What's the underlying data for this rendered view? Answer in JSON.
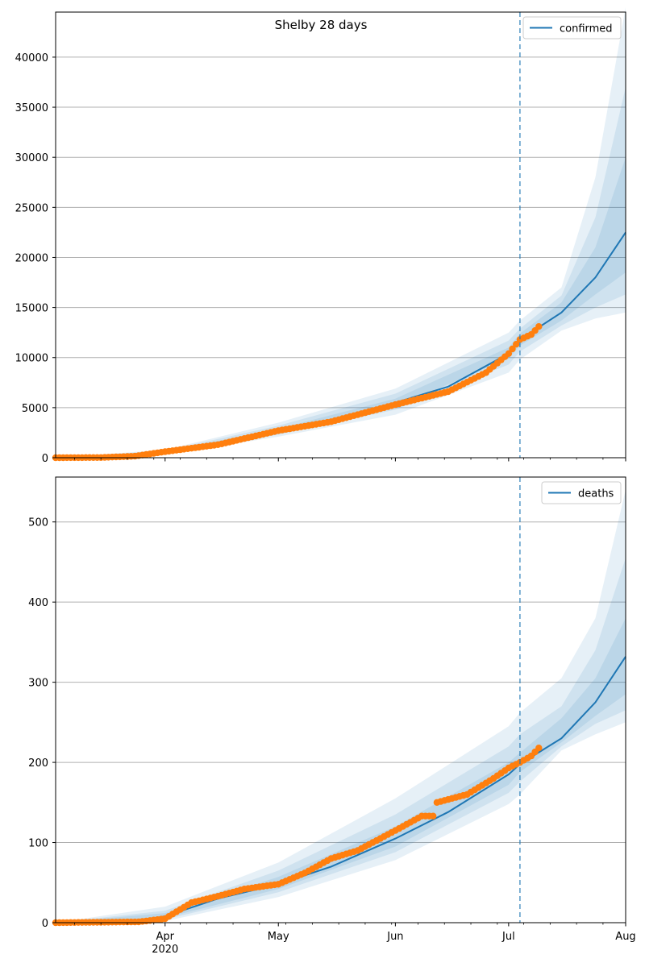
{
  "figure": {
    "title": "Shelby 28 days"
  },
  "colors": {
    "model": "#1f77b4",
    "observed": "#ff7f0e",
    "grid": "#b0b0b0",
    "band": "#1f77b4"
  },
  "chart_data": [
    {
      "type": "line",
      "name": "confirmed",
      "legend_position": "top-right",
      "grid": "horizontal",
      "x_range": [
        "2020-03-03",
        "2020-08-01"
      ],
      "ylim": [
        0,
        44500
      ],
      "yticks": [
        0,
        5000,
        10000,
        15000,
        20000,
        25000,
        30000,
        35000,
        40000
      ],
      "xticks": [
        {
          "date": "2020-04-01",
          "label": "Apr",
          "sublabel": "2020"
        },
        {
          "date": "2020-05-01",
          "label": "May",
          "sublabel": ""
        },
        {
          "date": "2020-06-01",
          "label": "Jun",
          "sublabel": ""
        },
        {
          "date": "2020-07-01",
          "label": "Jul",
          "sublabel": ""
        },
        {
          "date": "2020-08-01",
          "label": "Aug",
          "sublabel": ""
        }
      ],
      "forecast_start": "2020-07-04",
      "series": [
        {
          "name": "confirmed",
          "kind": "model-median",
          "x": [
            "2020-03-03",
            "2020-03-20",
            "2020-04-01",
            "2020-04-15",
            "2020-05-01",
            "2020-05-15",
            "2020-06-01",
            "2020-06-15",
            "2020-07-01",
            "2020-07-04",
            "2020-07-15",
            "2020-07-24",
            "2020-08-01"
          ],
          "values": [
            0,
            60,
            500,
            1500,
            2700,
            3700,
            5500,
            7100,
            10400,
            11800,
            14500,
            18000,
            22500
          ]
        },
        {
          "name": "observed",
          "kind": "points",
          "x": [
            "2020-03-03",
            "2020-03-15",
            "2020-03-24",
            "2020-04-01",
            "2020-04-15",
            "2020-05-01",
            "2020-05-15",
            "2020-06-01",
            "2020-06-15",
            "2020-06-25",
            "2020-07-01",
            "2020-07-04",
            "2020-07-07",
            "2020-07-09"
          ],
          "values": [
            0,
            20,
            150,
            600,
            1300,
            2700,
            3600,
            5300,
            6600,
            8500,
            10400,
            11800,
            12300,
            13100
          ]
        }
      ],
      "bands": [
        {
          "x": [
            "2020-03-03",
            "2020-04-01",
            "2020-05-01",
            "2020-06-01",
            "2020-07-01",
            "2020-07-04",
            "2020-07-15",
            "2020-07-24",
            "2020-08-01"
          ],
          "low": [
            0,
            300,
            2100,
            4300,
            8500,
            9800,
            12700,
            13900,
            14500
          ],
          "high": [
            0,
            800,
            3500,
            6900,
            12500,
            13700,
            17000,
            28000,
            45000
          ]
        },
        {
          "x": [
            "2020-03-03",
            "2020-04-01",
            "2020-05-01",
            "2020-06-01",
            "2020-07-01",
            "2020-07-04",
            "2020-07-15",
            "2020-07-24",
            "2020-08-01"
          ],
          "low": [
            0,
            400,
            2300,
            4800,
            9300,
            10600,
            13200,
            15000,
            16300
          ],
          "high": [
            0,
            700,
            3200,
            6400,
            11700,
            12900,
            16200,
            24000,
            37000
          ]
        },
        {
          "x": [
            "2020-03-03",
            "2020-04-01",
            "2020-05-01",
            "2020-06-01",
            "2020-07-01",
            "2020-07-04",
            "2020-07-15",
            "2020-07-24",
            "2020-08-01"
          ],
          "low": [
            0,
            450,
            2500,
            5100,
            9900,
            11200,
            13700,
            16300,
            18500
          ],
          "high": [
            0,
            600,
            2900,
            5900,
            11000,
            12400,
            15500,
            21000,
            30000
          ]
        }
      ]
    },
    {
      "type": "line",
      "name": "deaths",
      "legend_position": "top-right",
      "grid": "horizontal",
      "x_range": [
        "2020-03-03",
        "2020-08-01"
      ],
      "ylim": [
        0,
        556
      ],
      "yticks": [
        0,
        100,
        200,
        300,
        400,
        500
      ],
      "xticks": [
        {
          "date": "2020-04-01",
          "label": "Apr",
          "sublabel": "2020"
        },
        {
          "date": "2020-05-01",
          "label": "May",
          "sublabel": ""
        },
        {
          "date": "2020-06-01",
          "label": "Jun",
          "sublabel": ""
        },
        {
          "date": "2020-07-01",
          "label": "Jul",
          "sublabel": ""
        },
        {
          "date": "2020-08-01",
          "label": "Aug",
          "sublabel": ""
        }
      ],
      "forecast_start": "2020-07-04",
      "series": [
        {
          "name": "deaths",
          "kind": "model-median",
          "x": [
            "2020-03-03",
            "2020-03-25",
            "2020-04-01",
            "2020-04-15",
            "2020-05-01",
            "2020-05-15",
            "2020-06-01",
            "2020-06-15",
            "2020-07-01",
            "2020-07-04",
            "2020-07-15",
            "2020-07-24",
            "2020-08-01"
          ],
          "values": [
            0,
            2,
            8,
            30,
            48,
            70,
            105,
            138,
            185,
            198,
            230,
            275,
            332
          ]
        },
        {
          "name": "observed",
          "kind": "points",
          "x": [
            "2020-03-03",
            "2020-03-25",
            "2020-04-01",
            "2020-04-08",
            "2020-04-15",
            "2020-04-22",
            "2020-05-01",
            "2020-05-08",
            "2020-05-15",
            "2020-05-22",
            "2020-06-01",
            "2020-06-08",
            "2020-06-11",
            "2020-06-12",
            "2020-06-20",
            "2020-06-27",
            "2020-07-01",
            "2020-07-04",
            "2020-07-07",
            "2020-07-09"
          ],
          "values": [
            0,
            1,
            5,
            25,
            33,
            42,
            48,
            62,
            80,
            90,
            115,
            133,
            133,
            150,
            160,
            180,
            193,
            200,
            208,
            218
          ]
        }
      ],
      "bands": [
        {
          "x": [
            "2020-03-03",
            "2020-04-01",
            "2020-05-01",
            "2020-06-01",
            "2020-07-01",
            "2020-07-04",
            "2020-07-15",
            "2020-07-24",
            "2020-08-01"
          ],
          "low": [
            0,
            2,
            32,
            78,
            148,
            160,
            215,
            235,
            250
          ],
          "high": [
            0,
            20,
            75,
            155,
            245,
            262,
            305,
            380,
            540
          ]
        },
        {
          "x": [
            "2020-03-03",
            "2020-04-01",
            "2020-05-01",
            "2020-06-01",
            "2020-07-01",
            "2020-07-04",
            "2020-07-15",
            "2020-07-24",
            "2020-08-01"
          ],
          "low": [
            0,
            4,
            38,
            88,
            162,
            176,
            220,
            248,
            265
          ],
          "high": [
            0,
            15,
            65,
            135,
            220,
            235,
            270,
            340,
            455
          ]
        },
        {
          "x": [
            "2020-03-03",
            "2020-04-01",
            "2020-05-01",
            "2020-06-01",
            "2020-07-01",
            "2020-07-04",
            "2020-07-15",
            "2020-07-24",
            "2020-08-01"
          ],
          "low": [
            0,
            6,
            42,
            95,
            172,
            188,
            225,
            258,
            285
          ],
          "high": [
            0,
            12,
            57,
            120,
            200,
            212,
            255,
            305,
            380
          ]
        }
      ]
    }
  ]
}
